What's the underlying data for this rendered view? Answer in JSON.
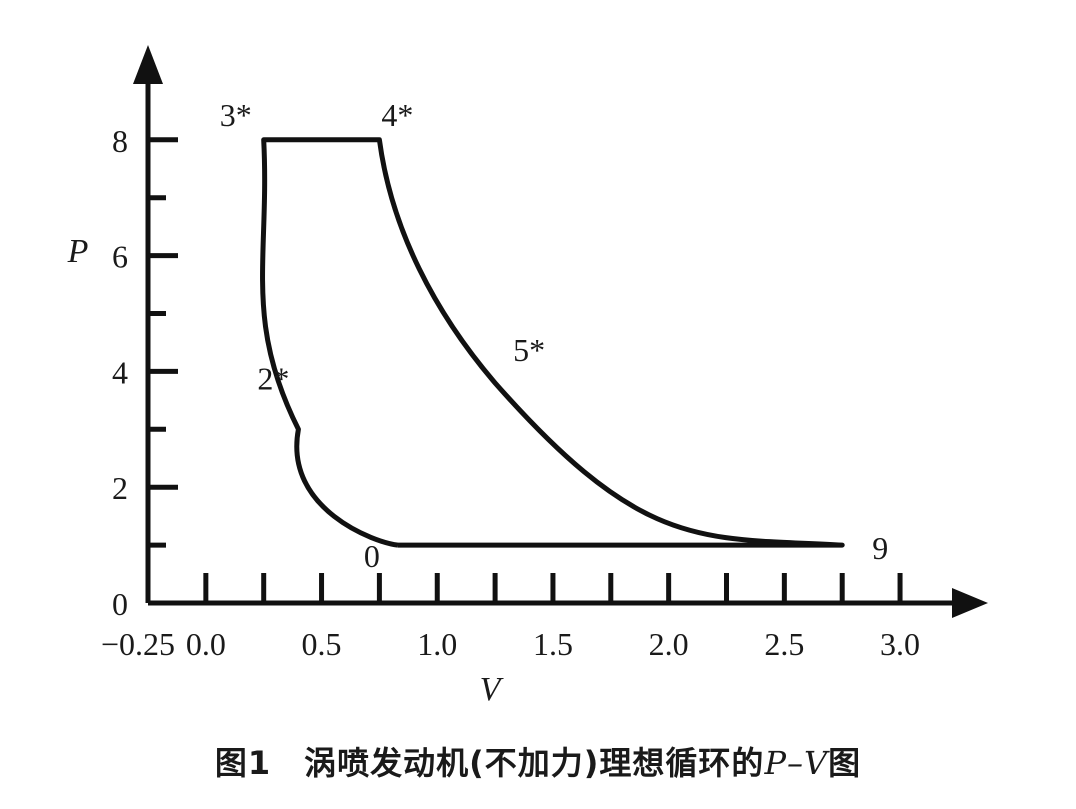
{
  "caption": {
    "prefix": "图1　涡喷发动机(不加力)理想循环的",
    "math": "P–V",
    "suffix": "图"
  },
  "chart_data": {
    "type": "line",
    "title": "",
    "xlabel": "V",
    "ylabel": "P",
    "xlim": [
      -0.25,
      3.25
    ],
    "ylim": [
      0,
      9
    ],
    "grid": false,
    "x_ticks": [
      -0.25,
      0.0,
      0.5,
      1.0,
      1.5,
      2.0,
      2.5,
      3.0
    ],
    "x_tick_labels": [
      "−0.25",
      "0.0",
      "0.5",
      "1.0",
      "1.5",
      "2.0",
      "2.5",
      "3.0"
    ],
    "x_minor_ticks": [
      0.25,
      0.75,
      1.25,
      1.75,
      2.25,
      2.75
    ],
    "y_ticks": [
      0,
      2,
      4,
      6,
      8
    ],
    "y_tick_labels": [
      "0",
      "2",
      "4",
      "6",
      "8"
    ],
    "y_minor_ticks": [
      1,
      3,
      5,
      7
    ],
    "series": [
      {
        "segments": [
          {
            "from": "0",
            "to": "3*",
            "shape": "compression curve"
          },
          {
            "from": "3*",
            "to": "4*",
            "shape": "constant pressure"
          },
          {
            "from": "4*",
            "to": "9",
            "shape": "expansion curve"
          },
          {
            "from": "9",
            "to": "0",
            "shape": "constant pressure"
          }
        ],
        "points": [
          {
            "label": "0",
            "x": 0.83,
            "y": 1.0
          },
          {
            "label": "2*",
            "x": 0.4,
            "y": 3.0
          },
          {
            "label": "3*",
            "x": 0.25,
            "y": 8.0
          },
          {
            "label": "4*",
            "x": 0.75,
            "y": 8.0
          },
          {
            "label": "5*",
            "x": 1.25,
            "y": 3.8
          },
          {
            "label": "9",
            "x": 2.75,
            "y": 1.0
          }
        ]
      }
    ]
  }
}
